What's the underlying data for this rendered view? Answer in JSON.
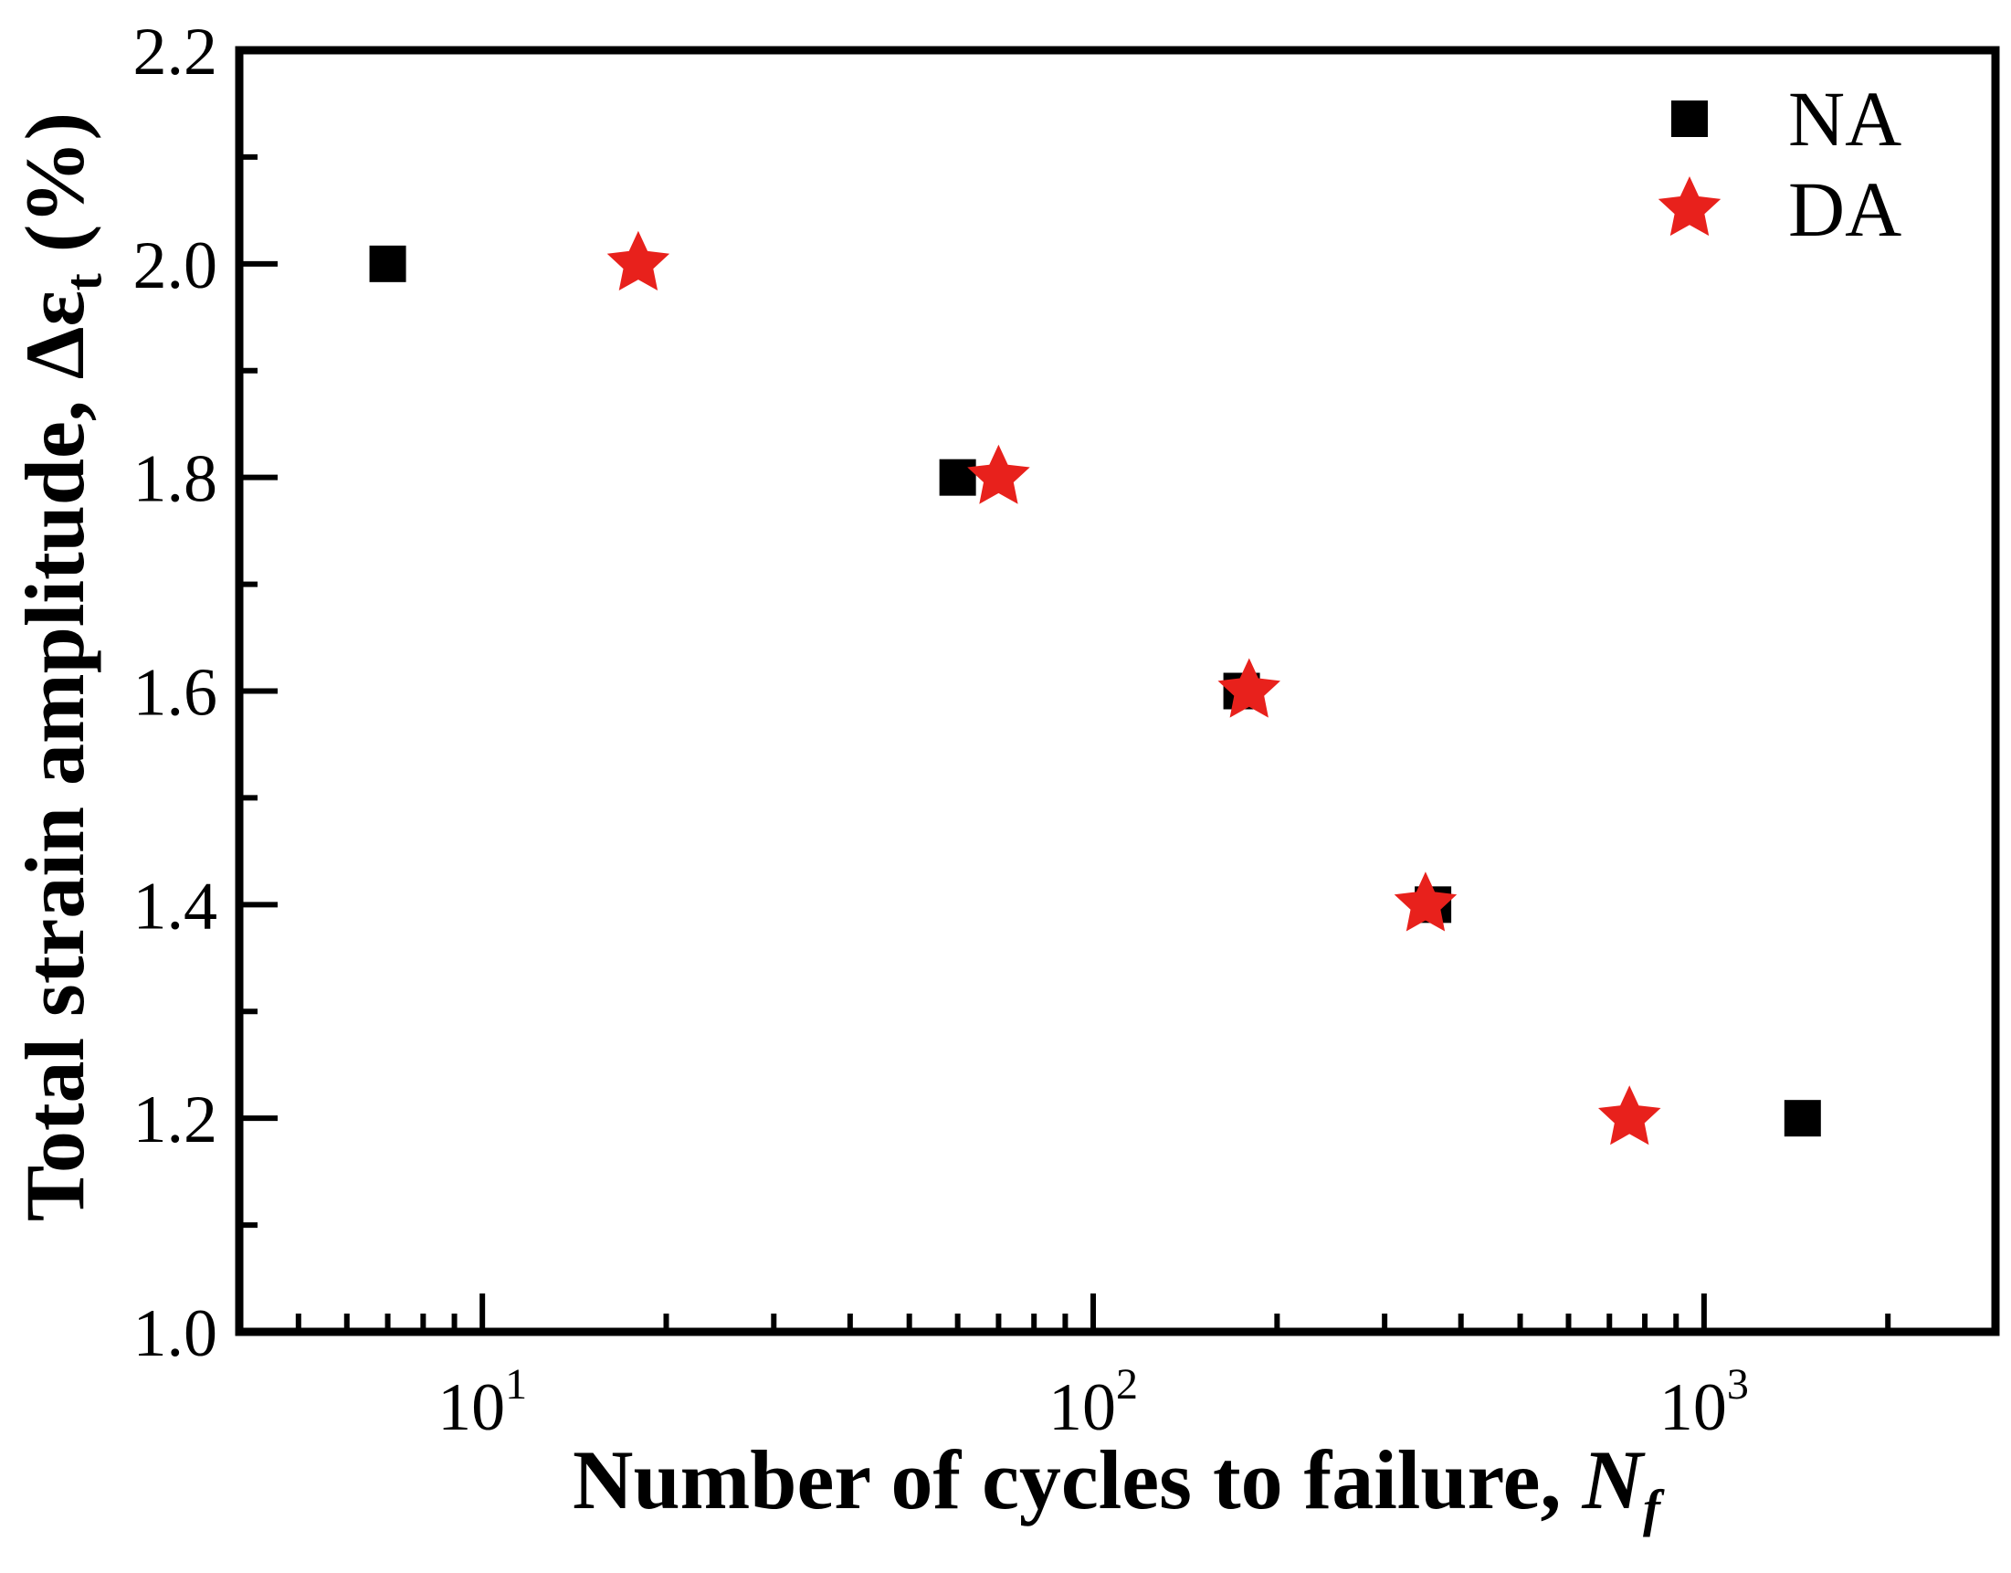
{
  "figure": {
    "background": "#ffffff",
    "text_color": "#000000"
  },
  "axes": {
    "x": {
      "title": {
        "text": "Number of cycles to failure, ",
        "symbol": "N",
        "subscript": "f"
      },
      "scale": "log",
      "min": 4,
      "max": 3000,
      "major_ticks": [
        10,
        100,
        1000
      ],
      "major_tick_labels": [
        {
          "base": "10",
          "exp": "1"
        },
        {
          "base": "10",
          "exp": "2"
        },
        {
          "base": "10",
          "exp": "3"
        }
      ],
      "minor_ticks": [
        5,
        6,
        7,
        8,
        9,
        20,
        30,
        40,
        50,
        60,
        70,
        80,
        90,
        200,
        300,
        400,
        500,
        600,
        700,
        800,
        900,
        2000
      ]
    },
    "y": {
      "title": {
        "text": "Total strain amplitude, ",
        "symbol": "Δε",
        "subscript": "t",
        "suffix": " (%)"
      },
      "scale": "linear",
      "min": 1.0,
      "max": 2.2,
      "major_ticks": [
        1.0,
        1.2,
        1.4,
        1.6,
        1.8,
        2.0,
        2.2
      ],
      "major_tick_labels": [
        "1.0",
        "1.2",
        "1.4",
        "1.6",
        "1.8",
        "2.0",
        "2.2"
      ],
      "minor_ticks": [
        1.1,
        1.3,
        1.5,
        1.7,
        1.9,
        2.1
      ]
    }
  },
  "chart_data": {
    "type": "scatter",
    "title": "",
    "xlabel": "Number of cycles to failure, Nf",
    "ylabel": "Total strain amplitude, Δεt (%)",
    "x_scale": "log",
    "xlim": [
      4,
      3000
    ],
    "ylim": [
      1.0,
      2.2
    ],
    "grid": false,
    "legend_position": "upper right",
    "series": [
      {
        "name": "NA",
        "marker": "square",
        "color": "#000000",
        "points": [
          [
            7,
            2.0
          ],
          [
            60,
            1.8
          ],
          [
            175,
            1.6
          ],
          [
            360,
            1.4
          ],
          [
            1450,
            1.2
          ]
        ]
      },
      {
        "name": "DA",
        "marker": "star",
        "color": "#e8211c",
        "points": [
          [
            18,
            2.0
          ],
          [
            70,
            1.8
          ],
          [
            180,
            1.6
          ],
          [
            350,
            1.4
          ],
          [
            755,
            1.2
          ]
        ]
      }
    ]
  },
  "legend": {
    "items": [
      {
        "label": "NA",
        "marker": "square",
        "color": "#000000"
      },
      {
        "label": "DA",
        "marker": "star",
        "color": "#e8211c"
      }
    ]
  }
}
